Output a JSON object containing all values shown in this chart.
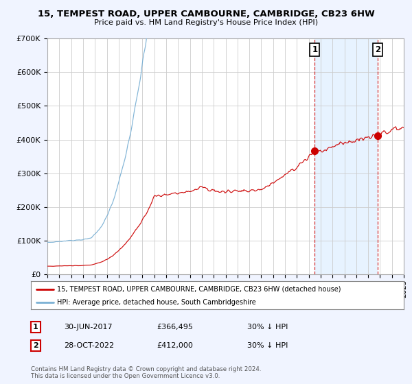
{
  "title1": "15, TEMPEST ROAD, UPPER CAMBOURNE, CAMBRIDGE, CB23 6HW",
  "title2": "Price paid vs. HM Land Registry's House Price Index (HPI)",
  "legend_line1": "15, TEMPEST ROAD, UPPER CAMBOURNE, CAMBRIDGE, CB23 6HW (detached house)",
  "legend_line2": "HPI: Average price, detached house, South Cambridgeshire",
  "annotation1_label": "1",
  "annotation1_date": "30-JUN-2017",
  "annotation1_price": "£366,495",
  "annotation1_note": "30% ↓ HPI",
  "annotation2_label": "2",
  "annotation2_date": "28-OCT-2022",
  "annotation2_price": "£412,000",
  "annotation2_note": "30% ↓ HPI",
  "footnote": "Contains HM Land Registry data © Crown copyright and database right 2024.\nThis data is licensed under the Open Government Licence v3.0.",
  "sale1_year": 2017.5,
  "sale1_value": 366495,
  "sale2_year": 2022.83,
  "sale2_value": 412000,
  "hpi_color": "#7ab0d4",
  "price_color": "#cc0000",
  "annotation_color": "#cc0000",
  "vline_color": "#cc0000",
  "shade_color": "#ddeeff",
  "background_color": "#f0f4ff",
  "plot_background": "#ffffff",
  "grid_color": "#cccccc",
  "ylim": [
    0,
    700000
  ],
  "xlim_start": 1995,
  "xlim_end": 2025
}
